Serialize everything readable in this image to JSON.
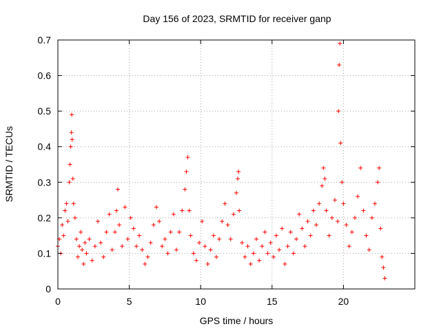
{
  "chart_data": {
    "type": "scatter",
    "title": "Day 156 of 2023, SRMTID for receiver ganp",
    "xlabel": "GPS time / hours",
    "ylabel": "SRMTID / TECUs",
    "xlim": [
      0,
      25
    ],
    "ylim": [
      0,
      0.7
    ],
    "xticks": [
      0,
      5,
      10,
      15,
      20
    ],
    "xtick_labels": [
      "0",
      "5",
      "10",
      "15",
      "20"
    ],
    "yticks": [
      0,
      0.1,
      0.2,
      0.3,
      0.4,
      0.5,
      0.6,
      0.7
    ],
    "ytick_labels": [
      "0",
      "0.1",
      "0.2",
      "0.3",
      "0.4",
      "0.5",
      "0.6",
      "0.7"
    ],
    "grid": true,
    "marker": "plus",
    "color": "#ff0000",
    "series": [
      {
        "name": "SRMTID",
        "points": [
          [
            0.0,
            0.12
          ],
          [
            0.1,
            0.14
          ],
          [
            0.2,
            0.1
          ],
          [
            0.3,
            0.18
          ],
          [
            0.4,
            0.15
          ],
          [
            0.5,
            0.22
          ],
          [
            0.6,
            0.24
          ],
          [
            0.7,
            0.19
          ],
          [
            0.8,
            0.3
          ],
          [
            0.85,
            0.35
          ],
          [
            0.9,
            0.4
          ],
          [
            0.95,
            0.44
          ],
          [
            0.97,
            0.49
          ],
          [
            1.0,
            0.42
          ],
          [
            1.05,
            0.31
          ],
          [
            1.1,
            0.24
          ],
          [
            1.2,
            0.2
          ],
          [
            1.3,
            0.14
          ],
          [
            1.4,
            0.09
          ],
          [
            1.5,
            0.12
          ],
          [
            1.6,
            0.16
          ],
          [
            1.7,
            0.11
          ],
          [
            1.8,
            0.07
          ],
          [
            1.9,
            0.13
          ],
          [
            2.0,
            0.1
          ],
          [
            2.2,
            0.14
          ],
          [
            2.4,
            0.08
          ],
          [
            2.6,
            0.12
          ],
          [
            2.8,
            0.19
          ],
          [
            3.0,
            0.13
          ],
          [
            3.2,
            0.09
          ],
          [
            3.4,
            0.16
          ],
          [
            3.6,
            0.21
          ],
          [
            3.8,
            0.11
          ],
          [
            4.0,
            0.16
          ],
          [
            4.1,
            0.22
          ],
          [
            4.2,
            0.28
          ],
          [
            4.3,
            0.18
          ],
          [
            4.5,
            0.12
          ],
          [
            4.7,
            0.23
          ],
          [
            4.9,
            0.14
          ],
          [
            5.1,
            0.2
          ],
          [
            5.3,
            0.17
          ],
          [
            5.5,
            0.12
          ],
          [
            5.7,
            0.15
          ],
          [
            5.9,
            0.11
          ],
          [
            6.1,
            0.07
          ],
          [
            6.3,
            0.09
          ],
          [
            6.5,
            0.13
          ],
          [
            6.7,
            0.18
          ],
          [
            6.9,
            0.23
          ],
          [
            7.1,
            0.19
          ],
          [
            7.3,
            0.12
          ],
          [
            7.5,
            0.14
          ],
          [
            7.7,
            0.1
          ],
          [
            7.9,
            0.16
          ],
          [
            8.1,
            0.21
          ],
          [
            8.3,
            0.11
          ],
          [
            8.5,
            0.16
          ],
          [
            8.7,
            0.22
          ],
          [
            8.9,
            0.28
          ],
          [
            9.0,
            0.33
          ],
          [
            9.1,
            0.37
          ],
          [
            9.2,
            0.22
          ],
          [
            9.3,
            0.15
          ],
          [
            9.5,
            0.1
          ],
          [
            9.7,
            0.08
          ],
          [
            9.9,
            0.13
          ],
          [
            10.1,
            0.19
          ],
          [
            10.3,
            0.12
          ],
          [
            10.5,
            0.07
          ],
          [
            10.7,
            0.11
          ],
          [
            10.9,
            0.15
          ],
          [
            11.1,
            0.09
          ],
          [
            11.3,
            0.14
          ],
          [
            11.5,
            0.19
          ],
          [
            11.7,
            0.24
          ],
          [
            11.9,
            0.18
          ],
          [
            12.1,
            0.14
          ],
          [
            12.3,
            0.21
          ],
          [
            12.5,
            0.27
          ],
          [
            12.6,
            0.31
          ],
          [
            12.65,
            0.33
          ],
          [
            12.7,
            0.22
          ],
          [
            12.9,
            0.13
          ],
          [
            13.1,
            0.09
          ],
          [
            13.3,
            0.12
          ],
          [
            13.5,
            0.07
          ],
          [
            13.7,
            0.1
          ],
          [
            13.9,
            0.14
          ],
          [
            14.1,
            0.08
          ],
          [
            14.3,
            0.12
          ],
          [
            14.5,
            0.16
          ],
          [
            14.7,
            0.1
          ],
          [
            14.9,
            0.13
          ],
          [
            15.1,
            0.09
          ],
          [
            15.3,
            0.15
          ],
          [
            15.5,
            0.11
          ],
          [
            15.7,
            0.17
          ],
          [
            15.9,
            0.07
          ],
          [
            16.1,
            0.12
          ],
          [
            16.3,
            0.16
          ],
          [
            16.5,
            0.1
          ],
          [
            16.7,
            0.14
          ],
          [
            16.9,
            0.21
          ],
          [
            17.1,
            0.17
          ],
          [
            17.3,
            0.12
          ],
          [
            17.5,
            0.19
          ],
          [
            17.7,
            0.15
          ],
          [
            17.9,
            0.22
          ],
          [
            18.1,
            0.18
          ],
          [
            18.3,
            0.24
          ],
          [
            18.5,
            0.29
          ],
          [
            18.6,
            0.34
          ],
          [
            18.7,
            0.31
          ],
          [
            18.8,
            0.22
          ],
          [
            19.0,
            0.15
          ],
          [
            19.2,
            0.2
          ],
          [
            19.4,
            0.25
          ],
          [
            19.6,
            0.19
          ],
          [
            19.65,
            0.5
          ],
          [
            19.7,
            0.63
          ],
          [
            19.75,
            0.69
          ],
          [
            19.8,
            0.41
          ],
          [
            19.9,
            0.3
          ],
          [
            20.0,
            0.24
          ],
          [
            20.2,
            0.18
          ],
          [
            20.4,
            0.12
          ],
          [
            20.6,
            0.16
          ],
          [
            20.8,
            0.2
          ],
          [
            21.0,
            0.26
          ],
          [
            21.2,
            0.34
          ],
          [
            21.4,
            0.22
          ],
          [
            21.6,
            0.15
          ],
          [
            21.8,
            0.11
          ],
          [
            22.0,
            0.2
          ],
          [
            22.2,
            0.24
          ],
          [
            22.4,
            0.3
          ],
          [
            22.5,
            0.34
          ],
          [
            22.6,
            0.17
          ],
          [
            22.7,
            0.09
          ],
          [
            22.8,
            0.06
          ],
          [
            22.9,
            0.03
          ]
        ]
      }
    ]
  }
}
